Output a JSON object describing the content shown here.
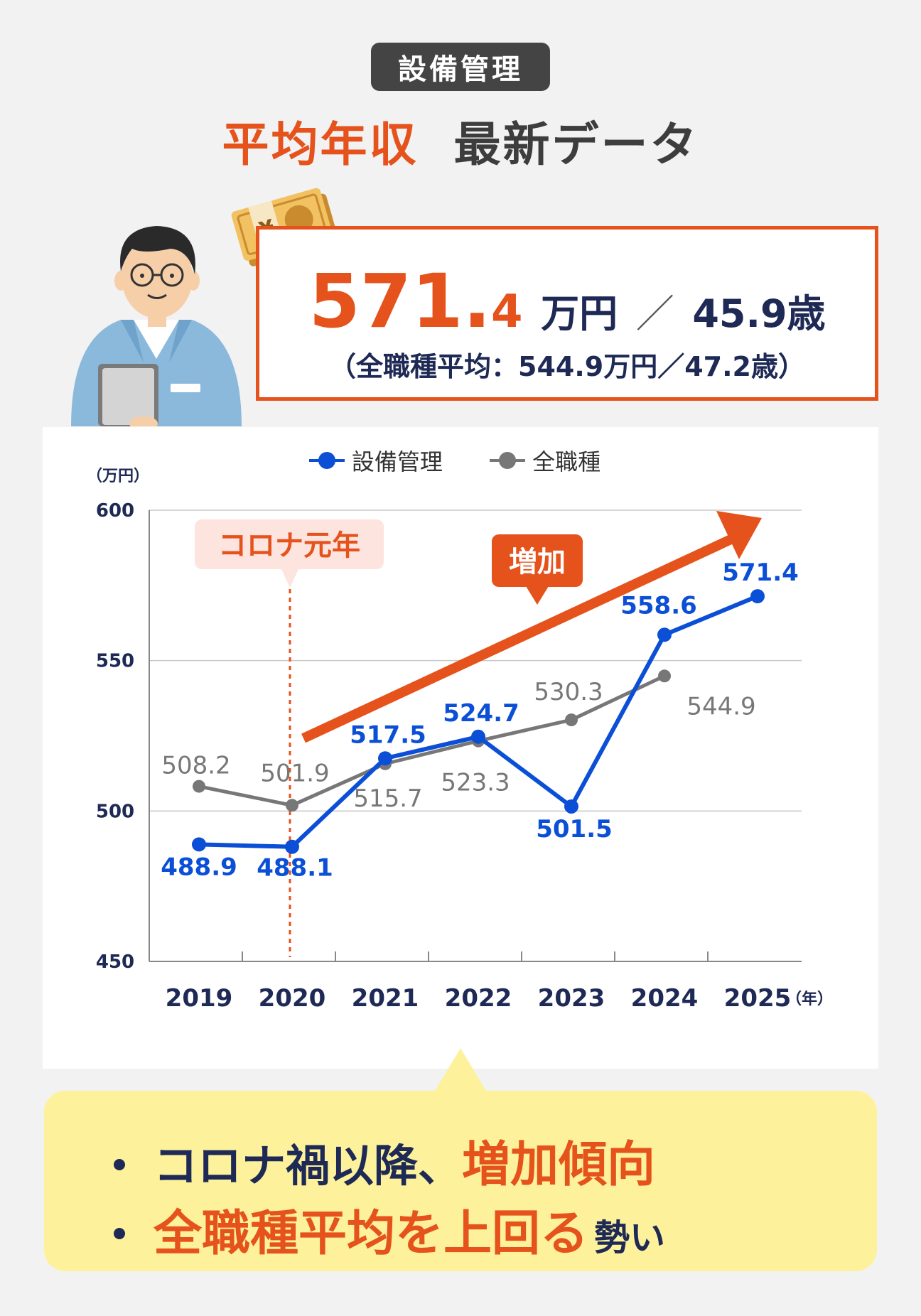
{
  "header": {
    "badge": "設備管理",
    "title_highlight": "平均年収",
    "title_rest": "最新データ"
  },
  "stat": {
    "salary_int": "571.",
    "salary_dec": "4",
    "salary_unit": "万円",
    "separator": "／",
    "age": "45.9歳",
    "comparison": "（全職種平均：544.9万円／47.2歳）"
  },
  "legend": {
    "series1": "設備管理",
    "series2": "全職種"
  },
  "annotations": {
    "corona": "コロナ元年",
    "increase": "増加"
  },
  "chart_data": {
    "type": "line",
    "ylabel": "（万円）",
    "xlabel": "（年）",
    "ylim": [
      450,
      600
    ],
    "yticks": [
      450,
      500,
      550,
      600
    ],
    "categories": [
      "2019",
      "2020",
      "2021",
      "2022",
      "2023",
      "2024",
      "2025"
    ],
    "series": [
      {
        "name": "設備管理",
        "color": "#0b4fd6",
        "values": [
          488.9,
          488.1,
          517.5,
          524.7,
          501.5,
          558.6,
          571.4
        ]
      },
      {
        "name": "全職種",
        "color": "#777777",
        "values": [
          508.2,
          501.9,
          515.7,
          523.3,
          530.3,
          544.9,
          null
        ]
      }
    ],
    "grid": true,
    "legend_position": "top-center"
  },
  "summary": {
    "line1_pre": "コロナ禍以降、",
    "line1_highlight": "増加傾向",
    "line2_highlight": "全職種平均を上回る",
    "line2_post": "勢い"
  },
  "colors": {
    "accent": "#e5521c",
    "navy": "#1e2a55",
    "blue": "#0b4fd6",
    "gray": "#777777",
    "summary_bg": "#fdf29b"
  }
}
